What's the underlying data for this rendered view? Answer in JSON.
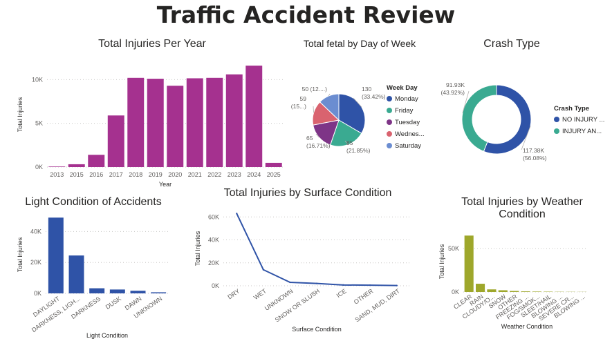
{
  "page": {
    "title": "Traffic Accident Review"
  },
  "chart_data": [
    {
      "id": "injuries_per_year",
      "type": "bar",
      "title": "Total Injuries Per Year",
      "xlabel": "Year",
      "ylabel": "Total Injuries",
      "categories": [
        "2013",
        "2015",
        "2016",
        "2017",
        "2018",
        "2019",
        "2020",
        "2021",
        "2022",
        "2023",
        "2024",
        "2025"
      ],
      "values": [
        60,
        320,
        1400,
        5900,
        10200,
        10100,
        9300,
        10150,
        10200,
        10600,
        11600,
        480
      ],
      "ylim": [
        0,
        12000
      ],
      "yticks": [
        0,
        5000,
        10000
      ],
      "ytick_labels": [
        "0K",
        "5K",
        "10K"
      ],
      "color": "#a5318f",
      "grid": true
    },
    {
      "id": "fetal_by_day",
      "type": "pie",
      "title": "Total fetal by Day of Week",
      "legend_title": "Week Day",
      "legend_position": "right",
      "slices": [
        {
          "name": "Monday",
          "value": 130,
          "label": "130",
          "pct_label": "(33.42%)",
          "color": "#2f53a7"
        },
        {
          "name": "Friday",
          "value": 85,
          "label": "85",
          "pct_label": "(21.85%)",
          "color": "#3aaa91"
        },
        {
          "name": "Tuesday",
          "value": 65,
          "label": "65",
          "pct_label": "(16.71%)",
          "color": "#7e3587"
        },
        {
          "name": "Wednes...",
          "value": 59,
          "label": "59",
          "pct_label": "(15...)",
          "color": "#d9636f"
        },
        {
          "name": "Saturday",
          "value": 50,
          "label": "50 (12....)",
          "pct_label": "",
          "color": "#6b8dd1"
        }
      ]
    },
    {
      "id": "crash_type",
      "type": "pie",
      "donut": true,
      "title": "Crash Type",
      "legend_title": "Crash Type",
      "legend_position": "right",
      "slices": [
        {
          "name": "NO INJURY ...",
          "value": 117.38,
          "label": "117.38K",
          "pct_label": "(56.08%)",
          "color": "#2f53a7"
        },
        {
          "name": "INJURY AN...",
          "value": 91.93,
          "label": "91.93K",
          "pct_label": "(43.92%)",
          "color": "#3aaa91"
        }
      ]
    },
    {
      "id": "light_condition",
      "type": "bar",
      "title": "Light Condition of Accidents",
      "xlabel": "Light Condition",
      "ylabel": "Total Injuries",
      "categories": [
        "DAYLIGHT",
        "DARKNESS, LIGH...",
        "DARKNESS",
        "DUSK",
        "DAWN",
        "UNKNOWN"
      ],
      "values": [
        49000,
        24500,
        3300,
        2500,
        1700,
        700
      ],
      "ylim": [
        0,
        50000
      ],
      "yticks": [
        0,
        20000,
        40000
      ],
      "ytick_labels": [
        "0K",
        "20K",
        "40K"
      ],
      "color": "#2f53a7",
      "grid": true
    },
    {
      "id": "surface_condition",
      "type": "line",
      "title": "Total Injuries by Surface Condition",
      "xlabel": "Surface Condition",
      "ylabel": "Total Injuries",
      "categories": [
        "DRY",
        "WET",
        "UNKNOWN",
        "SNOW OR SLUSH",
        "ICE",
        "OTHER",
        "SAND, MUD, DIRT"
      ],
      "values": [
        63000,
        14000,
        3000,
        2000,
        700,
        500,
        200
      ],
      "ylim": [
        0,
        65000
      ],
      "yticks": [
        0,
        20000,
        40000,
        60000
      ],
      "ytick_labels": [
        "0K",
        "20K",
        "40K",
        "60K"
      ],
      "color": "#2f53a7",
      "grid": true
    },
    {
      "id": "weather_condition",
      "type": "bar",
      "title": "Total Injuries by Weather Condition",
      "xlabel": "Weather Condition",
      "ylabel": "Total Injuries",
      "categories": [
        "CLEAR",
        "RAIN",
        "CLOUDY/O...",
        "SNOW",
        "OTHER",
        "FREEZING ...",
        "FOG/SMOK...",
        "SLEET/HAIL",
        "BLOWING ...",
        "SEVERE CR...",
        "BLOWING ..."
      ],
      "values": [
        65000,
        9500,
        3000,
        2000,
        1200,
        700,
        500,
        400,
        250,
        200,
        150
      ],
      "ylim": [
        0,
        70000
      ],
      "yticks": [
        0,
        50000
      ],
      "ytick_labels": [
        "0K",
        "50K"
      ],
      "color": "#9ea72b",
      "grid": true
    }
  ]
}
